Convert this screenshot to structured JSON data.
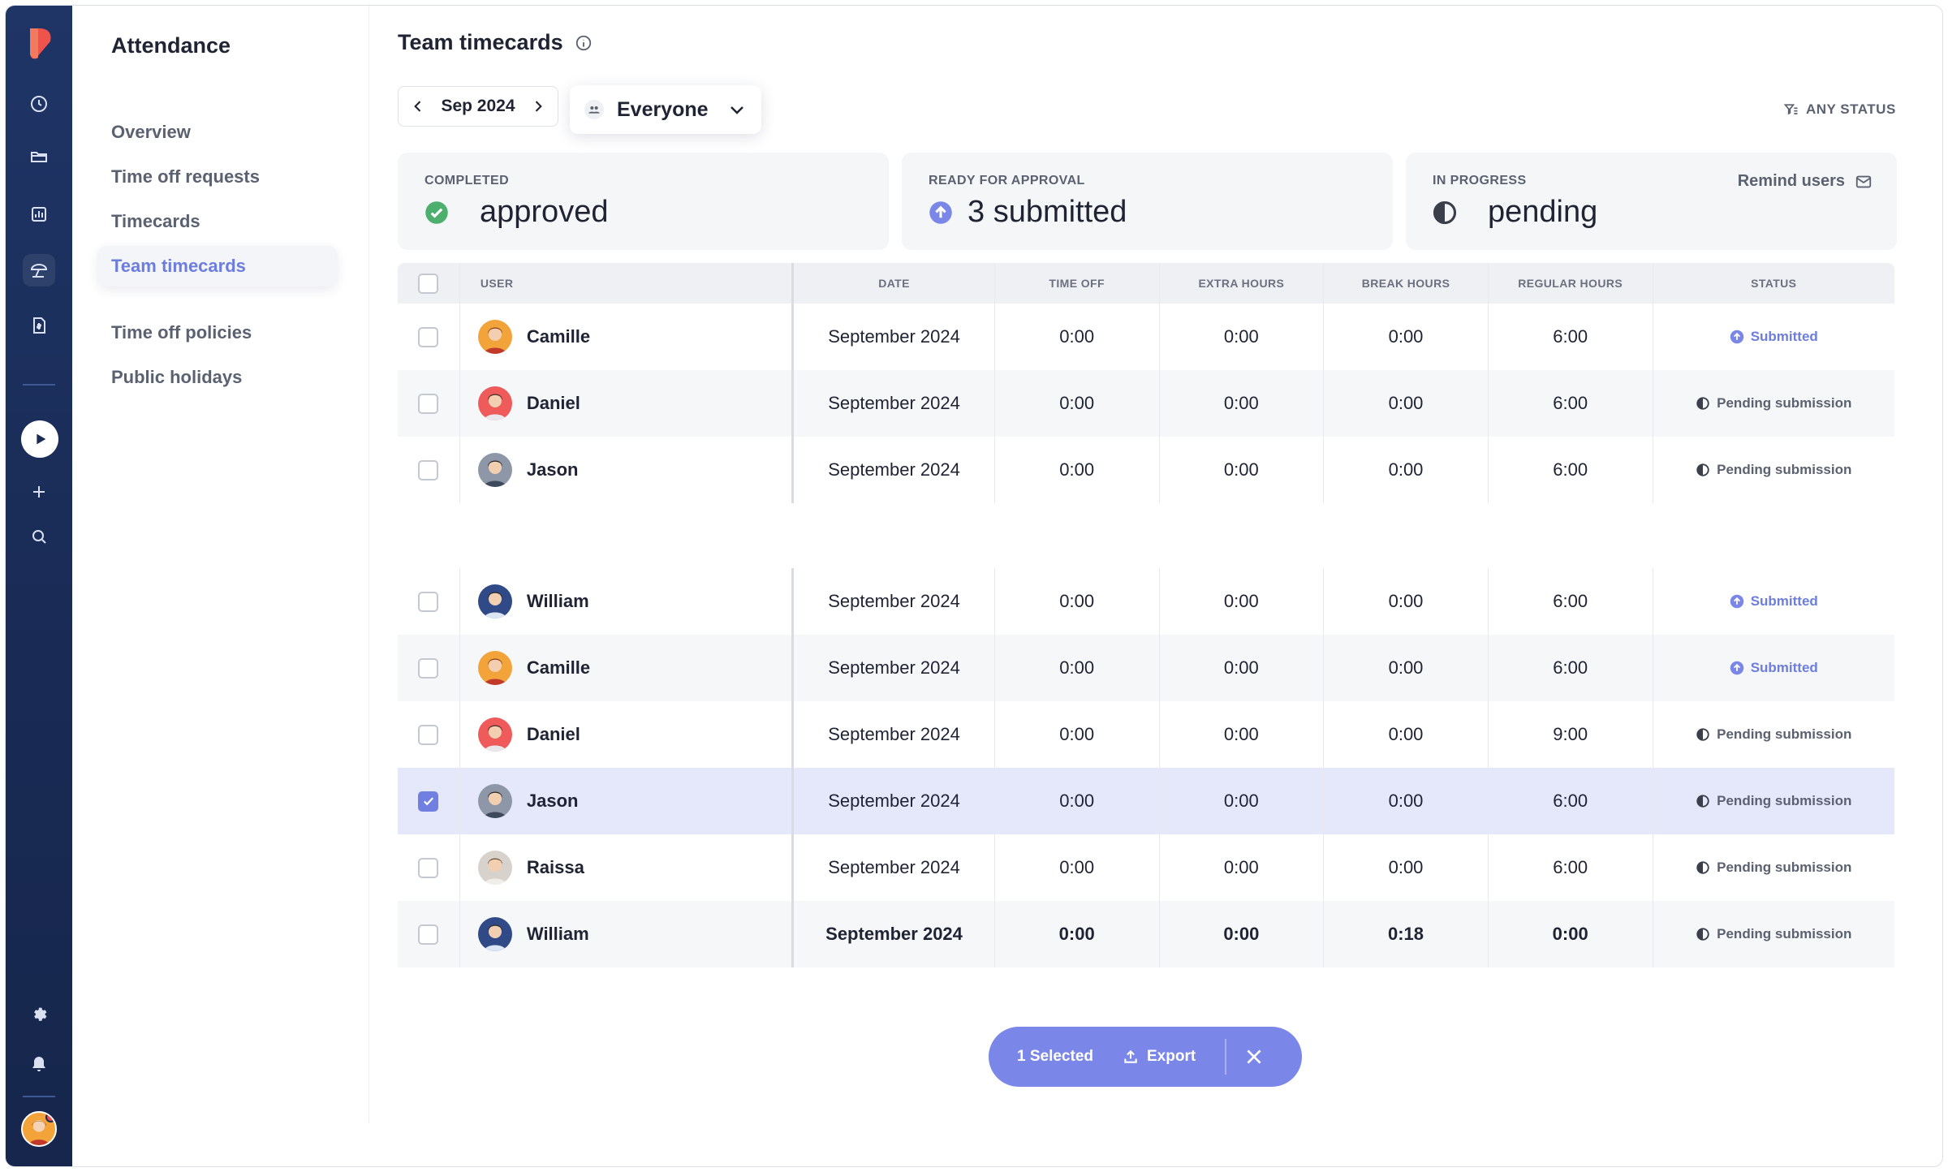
{
  "app": {
    "section_title": "Attendance",
    "page_title": "Team timecards"
  },
  "subnav": {
    "items": [
      {
        "label": "Overview"
      },
      {
        "label": "Time off requests"
      },
      {
        "label": "Timecards"
      },
      {
        "label": "Team timecards",
        "active": true
      },
      {
        "label": "Time off policies"
      },
      {
        "label": "Public holidays"
      }
    ]
  },
  "filters": {
    "month": "Sep 2024",
    "people": "Everyone",
    "status": "ANY STATUS"
  },
  "summary": {
    "completed": {
      "label": "COMPLETED",
      "value": "approved"
    },
    "ready": {
      "label": "READY FOR APPROVAL",
      "value": "3 submitted"
    },
    "in_progress": {
      "label": "IN PROGRESS",
      "value": "pending",
      "action": "Remind users"
    }
  },
  "table": {
    "headers": [
      "USER",
      "DATE",
      "TIME OFF",
      "EXTRA HOURS",
      "BREAK HOURS",
      "REGULAR HOURS",
      "STATUS"
    ],
    "rows": [
      {
        "user": "Camille",
        "date": "September 2024",
        "time_off": "0:00",
        "extra": "0:00",
        "break": "0:00",
        "regular": "6:00",
        "status": "Submitted"
      },
      {
        "user": "Daniel",
        "date": "September 2024",
        "time_off": "0:00",
        "extra": "0:00",
        "break": "0:00",
        "regular": "6:00",
        "status": "Pending submission"
      },
      {
        "user": "Jason",
        "date": "September 2024",
        "time_off": "0:00",
        "extra": "0:00",
        "break": "0:00",
        "regular": "6:00",
        "status": "Pending submission"
      },
      {
        "user": "William",
        "date": "September 2024",
        "time_off": "0:00",
        "extra": "0:00",
        "break": "0:00",
        "regular": "6:00",
        "status": "Submitted"
      },
      {
        "user": "Camille",
        "date": "September 2024",
        "time_off": "0:00",
        "extra": "0:00",
        "break": "0:00",
        "regular": "6:00",
        "status": "Submitted"
      },
      {
        "user": "Daniel",
        "date": "September 2024",
        "time_off": "0:00",
        "extra": "0:00",
        "break": "0:00",
        "regular": "9:00",
        "status": "Pending submission"
      },
      {
        "user": "Jason",
        "date": "September 2024",
        "time_off": "0:00",
        "extra": "0:00",
        "break": "0:00",
        "regular": "6:00",
        "status": "Pending submission",
        "checked": true
      },
      {
        "user": "Raissa",
        "date": "September 2024",
        "time_off": "0:00",
        "extra": "0:00",
        "break": "0:00",
        "regular": "6:00",
        "status": "Pending submission"
      },
      {
        "user": "William",
        "date": "September 2024",
        "time_off": "0:00",
        "extra": "0:00",
        "break": "0:18",
        "regular": "0:00",
        "status": "Pending submission"
      }
    ]
  },
  "action_bar": {
    "selected": "1 Selected",
    "export": "Export"
  },
  "colors": {
    "accent": "#6c7dde",
    "rail": "#1f3566",
    "success": "#4caf6e",
    "brand": "#ef4b4b"
  }
}
